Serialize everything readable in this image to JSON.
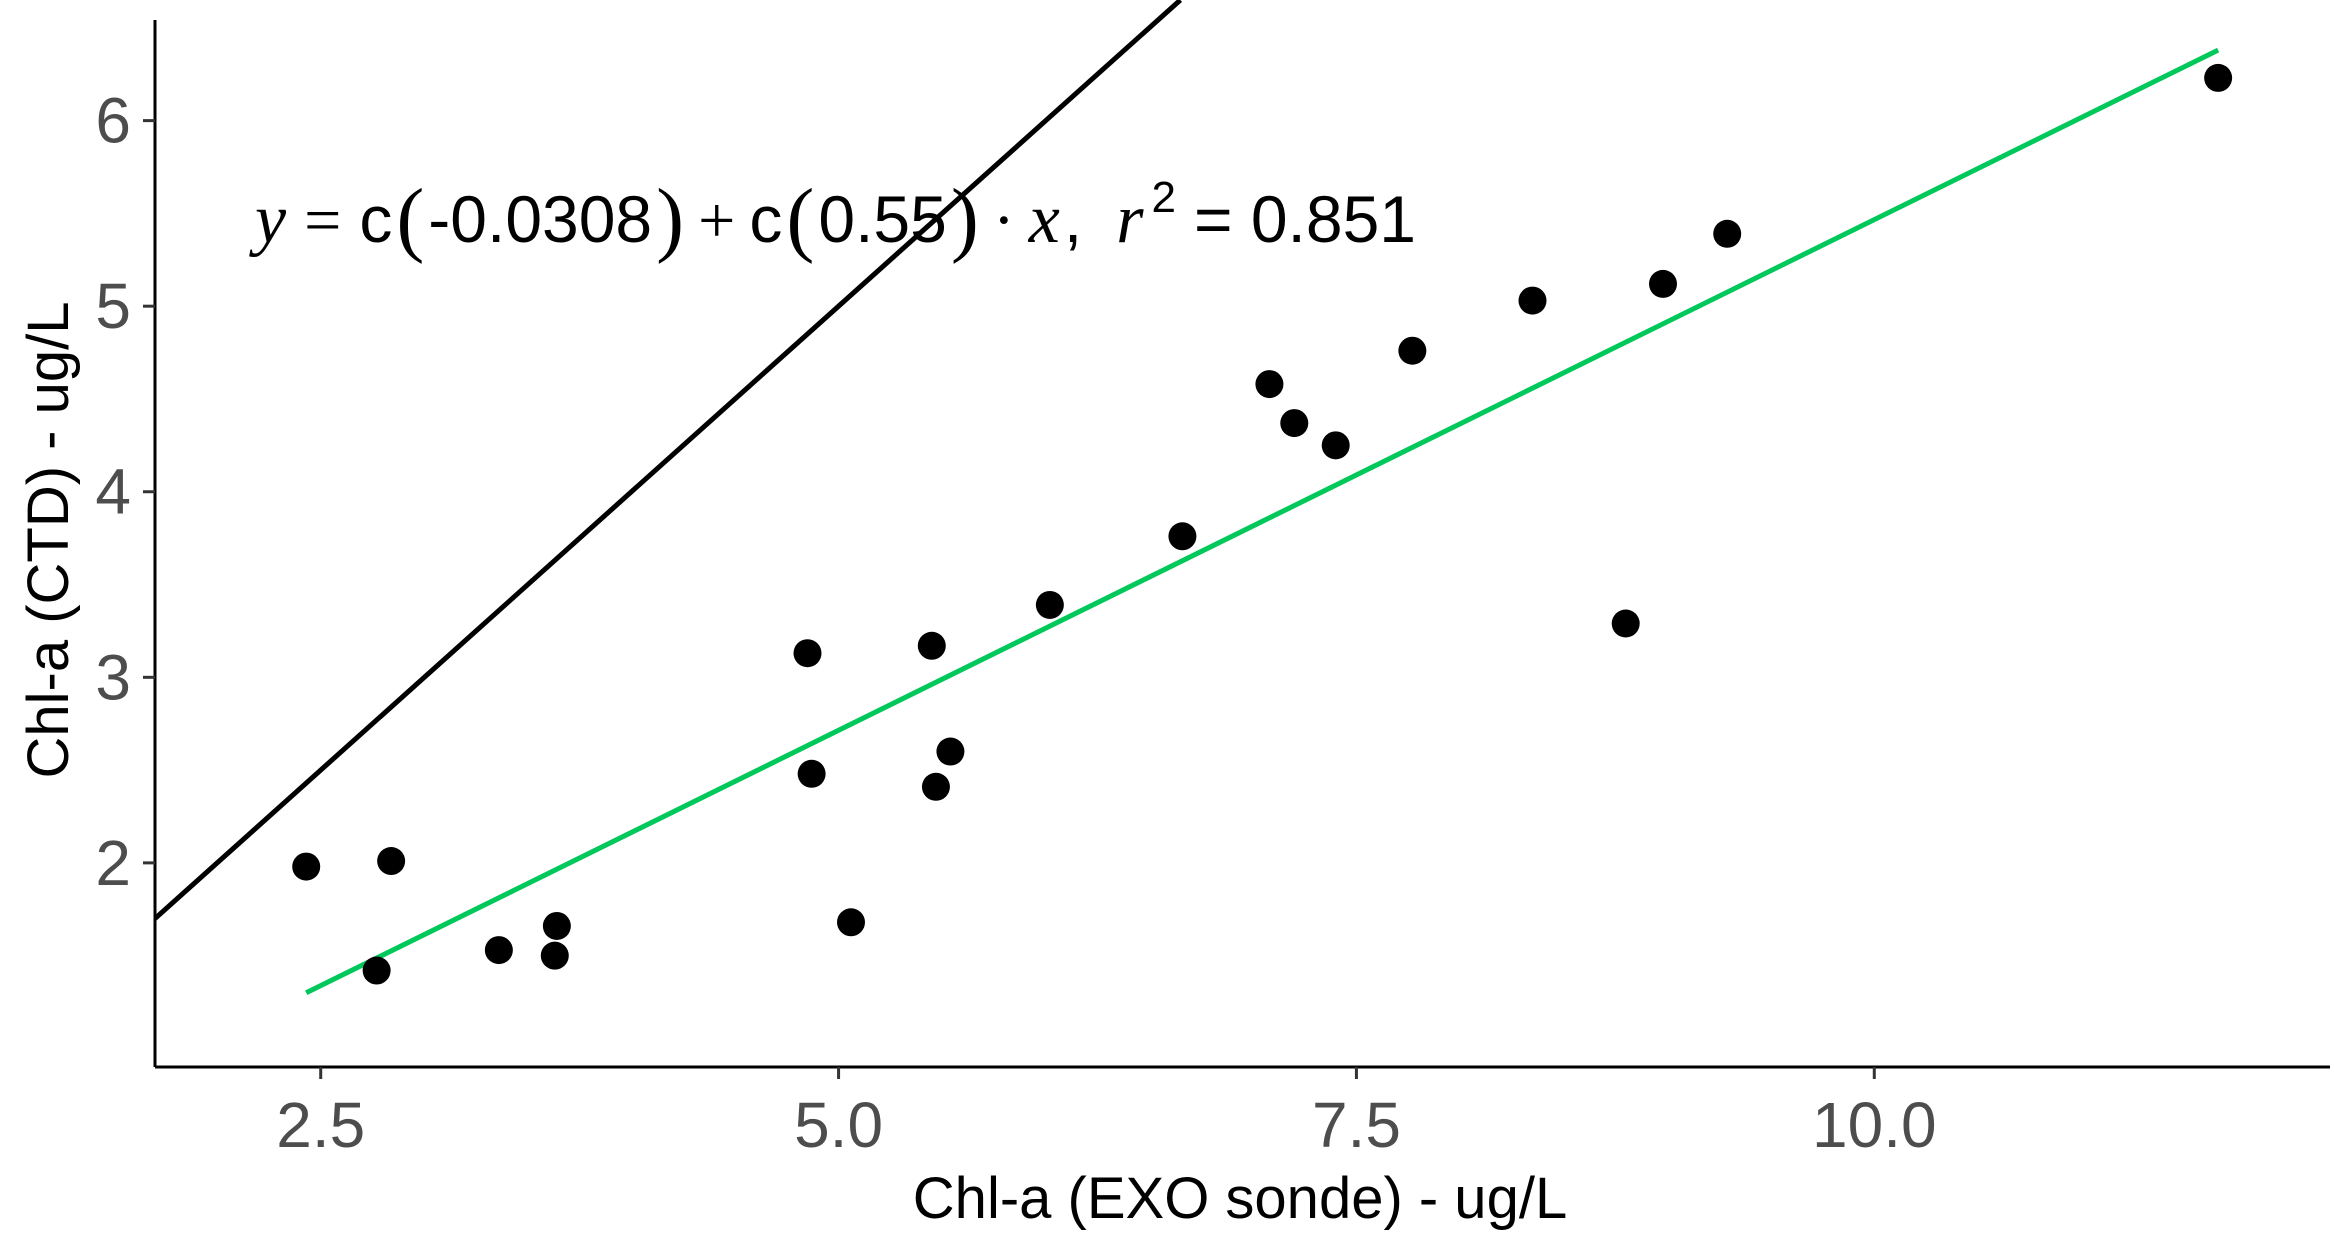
{
  "chart_data": {
    "type": "scatter",
    "xlabel": "Chl-a (EXO sonde) - ug/L",
    "ylabel": "Chl-a (CTD) - ug/L",
    "xlim": [
      1.7,
      12.2
    ],
    "ylim": [
      0.9,
      6.65
    ],
    "x_ticks": [
      2.5,
      5.0,
      7.5,
      10.0
    ],
    "x_tick_labels": [
      "2.5",
      "5.0",
      "7.5",
      "10.0"
    ],
    "y_ticks": [
      2,
      3,
      4,
      5,
      6
    ],
    "y_tick_labels": [
      "2",
      "3",
      "4",
      "5",
      "6"
    ],
    "grid": false,
    "points": [
      {
        "x": 2.43,
        "y": 1.98
      },
      {
        "x": 2.77,
        "y": 1.42
      },
      {
        "x": 2.84,
        "y": 2.01
      },
      {
        "x": 3.36,
        "y": 1.53
      },
      {
        "x": 3.63,
        "y": 1.5
      },
      {
        "x": 3.64,
        "y": 1.66
      },
      {
        "x": 4.85,
        "y": 3.13
      },
      {
        "x": 4.87,
        "y": 2.48
      },
      {
        "x": 5.06,
        "y": 1.68
      },
      {
        "x": 5.45,
        "y": 3.17
      },
      {
        "x": 5.47,
        "y": 2.41
      },
      {
        "x": 5.54,
        "y": 2.6
      },
      {
        "x": 6.02,
        "y": 3.39
      },
      {
        "x": 6.66,
        "y": 3.76
      },
      {
        "x": 7.08,
        "y": 4.58
      },
      {
        "x": 7.2,
        "y": 4.37
      },
      {
        "x": 7.4,
        "y": 4.25
      },
      {
        "x": 7.77,
        "y": 4.76
      },
      {
        "x": 8.35,
        "y": 5.03
      },
      {
        "x": 8.8,
        "y": 3.29
      },
      {
        "x": 8.98,
        "y": 5.12
      },
      {
        "x": 9.29,
        "y": 5.39
      },
      {
        "x": 11.66,
        "y": 6.23
      }
    ],
    "lines": [
      {
        "kind": "identity",
        "color": "#000000",
        "x": [
          1.7,
          6.65
        ],
        "y": [
          1.7,
          6.65
        ]
      },
      {
        "kind": "fit",
        "color": "#00c85a",
        "x": [
          2.43,
          11.66
        ],
        "y": [
          1.3,
          6.38
        ]
      }
    ],
    "annotation": {
      "y_var": "y",
      "eq": "=",
      "c1": "c",
      "coef1": "-0.0308",
      "plus": "+",
      "c2": "c",
      "coef2": "0.55",
      "dot": "·",
      "x_var": "x",
      "comma": ",",
      "r_var": "r",
      "r_sup": "2",
      "r_value": "= 0.851",
      "anchor": [
        2.15,
        5.55
      ]
    },
    "colors": {
      "points": "#000000",
      "identity_line": "#000000",
      "fit_line": "#00c85a",
      "axis": "#000000",
      "tick_label": "#4d4d4d"
    }
  }
}
